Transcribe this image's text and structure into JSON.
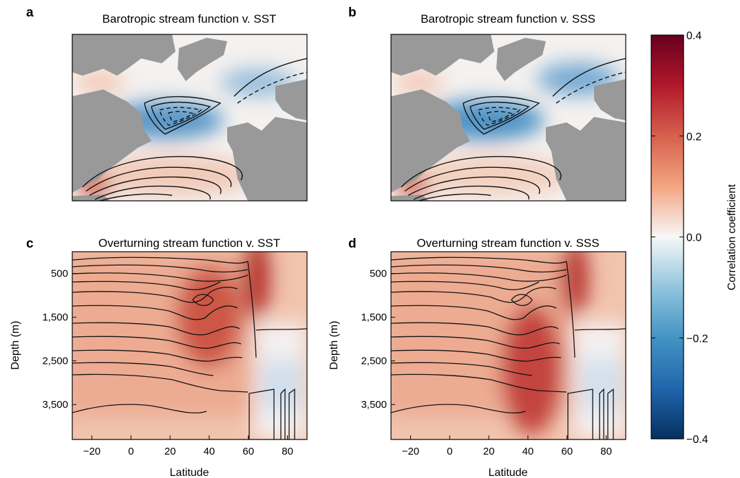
{
  "chart_data": {
    "type": "heatmap",
    "colormap": {
      "name": "RdBu_r",
      "range": [
        -0.4,
        0.4
      ],
      "ticks": [
        "0.4",
        "0.2",
        "0.0",
        "−0.2",
        "−0.4"
      ],
      "tick_values": [
        0.4,
        0.2,
        0.0,
        -0.2,
        -0.4
      ],
      "label": "Correlation coefficient",
      "land_color": "#999999"
    },
    "panels": [
      {
        "letter": "a",
        "title": "Barotropic stream function v. SST",
        "kind": "map",
        "features": {
          "subpolar_gyre_correlation": -0.28,
          "nordic_seas_correlation": -0.18,
          "subtropical_gyre_correlation": 0.12,
          "western_boundary_correlation": 0.3
        }
      },
      {
        "letter": "b",
        "title": "Barotropic stream function v. SSS",
        "kind": "map",
        "features": {
          "subpolar_gyre_correlation": -0.3,
          "nordic_seas_correlation": -0.25,
          "subtropical_gyre_correlation": 0.1,
          "western_boundary_correlation": 0.28
        }
      },
      {
        "letter": "c",
        "title": "Overturning stream function v. SST",
        "kind": "section",
        "xlabel": "Latitude",
        "ylabel": "Depth (m)",
        "xlim": [
          -30,
          90
        ],
        "ylim": [
          0,
          4300
        ],
        "xticks": [
          "−20",
          "0",
          "20",
          "40",
          "60",
          "80"
        ],
        "xtick_values": [
          -20,
          0,
          20,
          40,
          60,
          80
        ],
        "yticks": [
          "500",
          "1,500",
          "2,500",
          "3,500"
        ],
        "ytick_values": [
          500,
          1500,
          2500,
          3500
        ],
        "features": {
          "max_correlation": 0.3,
          "max_latitude": 40,
          "max_depth": 1500,
          "northern_max_latitude": 64,
          "northern_max_correlation": 0.35
        }
      },
      {
        "letter": "d",
        "title": "Overturning stream function v. SSS",
        "kind": "section",
        "xlabel": "Latitude",
        "ylabel": "Depth (m)",
        "xlim": [
          -30,
          90
        ],
        "ylim": [
          0,
          4300
        ],
        "xticks": [
          "−20",
          "0",
          "20",
          "40",
          "60",
          "80"
        ],
        "xtick_values": [
          -20,
          0,
          20,
          40,
          60,
          80
        ],
        "yticks": [
          "500",
          "1,500",
          "2,500",
          "3,500"
        ],
        "ytick_values": [
          500,
          1500,
          2500,
          3500
        ],
        "features": {
          "max_correlation": 0.36,
          "max_latitude": 42,
          "max_depth": 2700,
          "northern_max_latitude": 64,
          "northern_max_correlation": 0.33
        }
      }
    ]
  }
}
